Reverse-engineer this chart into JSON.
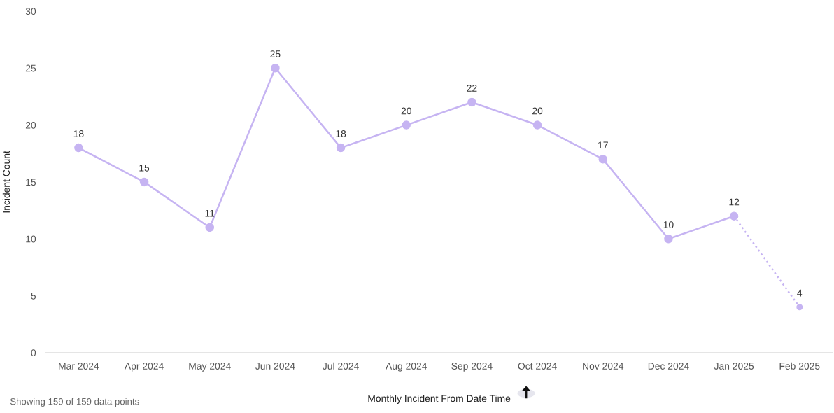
{
  "chart_data": {
    "type": "line",
    "xlabel": "Monthly Incident From Date Time",
    "ylabel": "Incident Count",
    "categories": [
      "Mar 2024",
      "Apr 2024",
      "May 2024",
      "Jun 2024",
      "Jul 2024",
      "Aug 2024",
      "Sep 2024",
      "Oct 2024",
      "Nov 2024",
      "Dec 2024",
      "Jan 2025",
      "Feb 2025"
    ],
    "series": [
      {
        "color": "#c6b4f2",
        "line_style": "solid",
        "values": [
          18,
          15,
          11,
          25,
          18,
          20,
          22,
          20,
          17,
          10,
          12,
          null
        ],
        "value_labels": [
          "18",
          "15",
          "11",
          "25",
          "18",
          "20",
          "22",
          "20",
          "17",
          "10",
          "12",
          null
        ]
      },
      {
        "color": "#c6b4f2",
        "line_style": "dotted",
        "values": [
          null,
          null,
          null,
          null,
          null,
          null,
          null,
          null,
          null,
          null,
          12,
          4
        ],
        "value_labels": [
          null,
          null,
          null,
          null,
          null,
          null,
          null,
          null,
          null,
          null,
          null,
          "4"
        ]
      }
    ],
    "ylim": [
      0,
      30
    ],
    "yticks": [
      0,
      5,
      10,
      15,
      20,
      25,
      30
    ],
    "marker": "circle",
    "grid": false,
    "legend": false,
    "annotations": [
      "Showing 159 of 159 data points"
    ]
  }
}
